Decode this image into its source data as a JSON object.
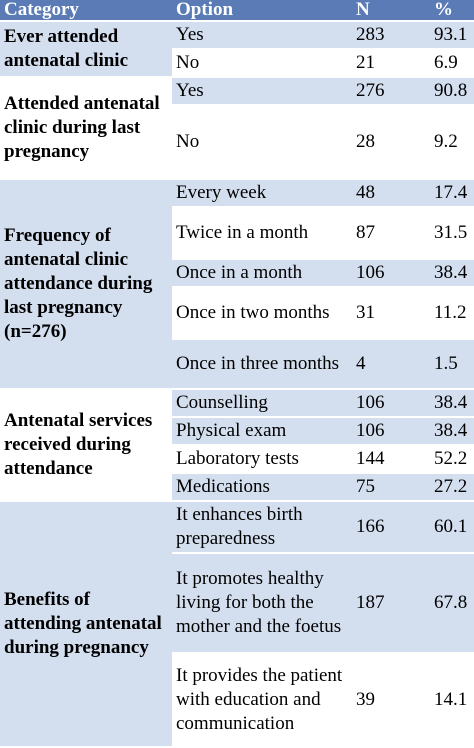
{
  "table": {
    "header": [
      "Category",
      "Option",
      "N",
      "%"
    ],
    "groups": [
      {
        "category": "Ever attended antenatal clinic",
        "rows": [
          {
            "option": "Yes",
            "n": 283,
            "pct": 93.1
          },
          {
            "option": "No",
            "n": 21,
            "pct": 6.9
          }
        ]
      },
      {
        "category": "Attended antenatal clinic during last pregnancy",
        "rows": [
          {
            "option": "Yes",
            "n": 276,
            "pct": 90.8
          },
          {
            "option": "No",
            "n": 28,
            "pct": 9.2
          }
        ]
      },
      {
        "category": "Frequency of antenatal clinic attendance during last pregnancy (n=276)",
        "rows": [
          {
            "option": "Every week",
            "n": 48,
            "pct": 17.4
          },
          {
            "option": "Twice in a month",
            "n": 87,
            "pct": 31.5
          },
          {
            "option": "Once in a month",
            "n": 106,
            "pct": 38.4
          },
          {
            "option": "Once in two months",
            "n": 31,
            "pct": 11.2
          },
          {
            "option": "Once in three months",
            "n": 4,
            "pct": 1.5
          }
        ]
      },
      {
        "category": "Antenatal services received during attendance",
        "rows": [
          {
            "option": "Counselling",
            "n": 106,
            "pct": 38.4
          },
          {
            "option": "Physical exam",
            "n": 106,
            "pct": 38.4
          },
          {
            "option": "Laboratory tests",
            "n": 144,
            "pct": 52.2
          },
          {
            "option": "Medications",
            "n": 75,
            "pct": 27.2
          }
        ]
      },
      {
        "category": "Benefits of attending antenatal during pregnancy",
        "rows": [
          {
            "option": "It enhances birth preparedness",
            "n": 166,
            "pct": 60.1
          },
          {
            "option": "It promotes healthy living for both the mother and the foetus",
            "n": 187,
            "pct": 67.8
          },
          {
            "option": "It provides the patient with education and communication",
            "n": 39,
            "pct": 14.1
          }
        ]
      }
    ]
  }
}
